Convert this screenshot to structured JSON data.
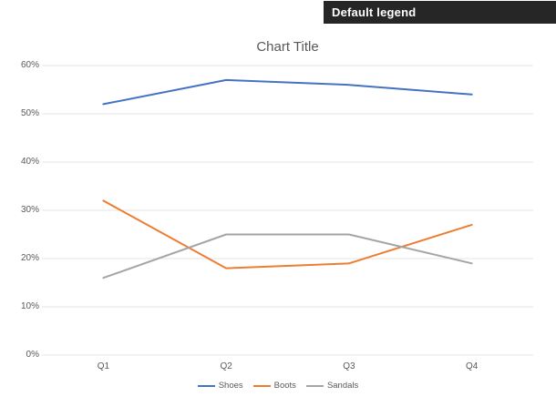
{
  "banner": {
    "label": "Default legend"
  },
  "chart_data": {
    "type": "line",
    "title": "Chart Title",
    "categories": [
      "Q1",
      "Q2",
      "Q3",
      "Q4"
    ],
    "series": [
      {
        "name": "Shoes",
        "color": "#4472C4",
        "values": [
          52,
          57,
          56,
          54
        ]
      },
      {
        "name": "Boots",
        "color": "#ED7D31",
        "values": [
          32,
          18,
          19,
          27
        ]
      },
      {
        "name": "Sandals",
        "color": "#A5A5A5",
        "values": [
          16,
          25,
          25,
          19
        ]
      }
    ],
    "ylim": [
      0,
      60
    ],
    "ytick_step": 10,
    "ytick_suffix": "%",
    "grid": true,
    "gridline_color": "#E4E4E4",
    "axis_text_color": "#595959",
    "legend_position": "bottom"
  }
}
